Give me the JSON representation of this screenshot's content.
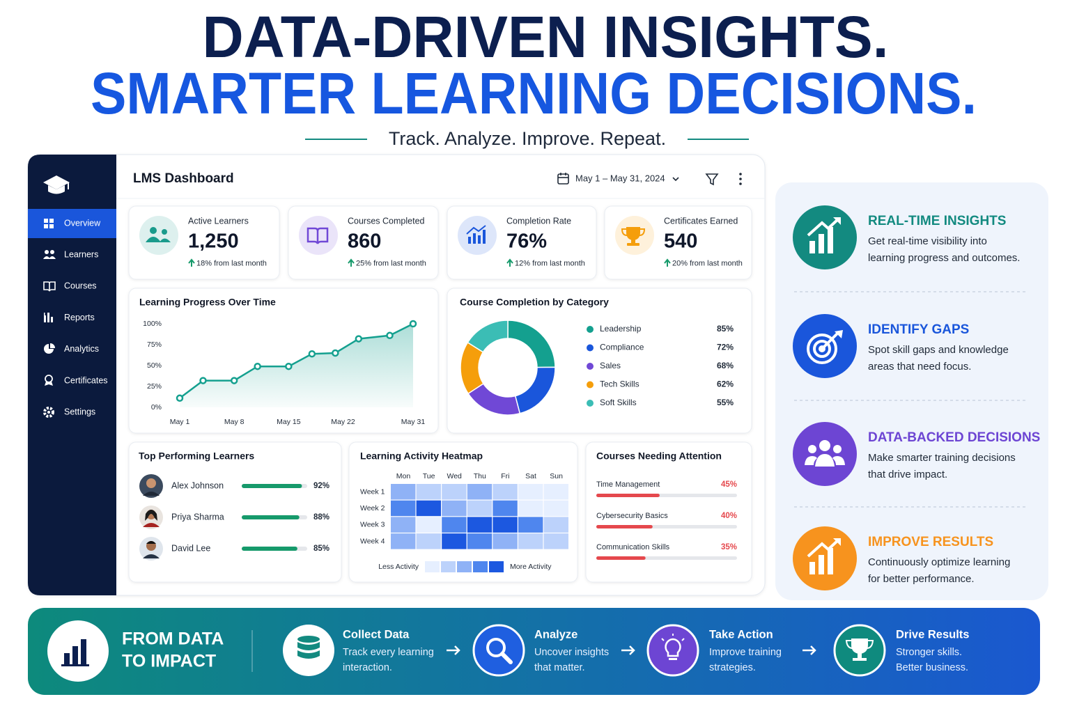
{
  "header": {
    "title_line1": "DATA-DRIVEN INSIGHTS.",
    "title_line2": "SMARTER LEARNING DECISIONS.",
    "tagline": "Track. Analyze. Improve. Repeat."
  },
  "sidebar": {
    "items": [
      "Overview",
      "Learners",
      "Courses",
      "Reports",
      "Analytics",
      "Certificates",
      "Settings"
    ],
    "active": 0
  },
  "dashboard": {
    "title": "LMS Dashboard",
    "date_range": "May 1 – May 31, 2024",
    "kpis": [
      {
        "label": "Active Learners",
        "value": "1,250",
        "change": "18% from last month",
        "color": "#1a9b8c"
      },
      {
        "label": "Courses Completed",
        "value": "860",
        "change": "25% from last month",
        "color": "#7048d6"
      },
      {
        "label": "Completion Rate",
        "value": "76%",
        "change": "12% from last month",
        "color": "#1a56db"
      },
      {
        "label": "Certificates Earned",
        "value": "540",
        "change": "20% from last month",
        "color": "#f59e0b"
      }
    ],
    "progress_chart": {
      "type": "line",
      "title": "Learning Progress Over Time",
      "x": [
        1,
        4,
        8,
        11,
        15,
        18,
        21,
        24,
        28,
        31
      ],
      "values": [
        11,
        32,
        32,
        49,
        49,
        64,
        65,
        82,
        86,
        100
      ],
      "xlim": [
        1,
        31
      ],
      "xticks": [
        {
          "value": 1,
          "label": "May 1"
        },
        {
          "value": 8,
          "label": "May 8"
        },
        {
          "value": 15,
          "label": "May 15"
        },
        {
          "value": 22,
          "label": "May 22"
        },
        {
          "value": 31,
          "label": "May 31"
        }
      ],
      "ylim": [
        0,
        100
      ],
      "yticks": [
        {
          "value": 0,
          "label": "0%"
        },
        {
          "value": 25,
          "label": "25%"
        },
        {
          "value": 50,
          "label": "50%"
        },
        {
          "value": 75,
          "label": "75%"
        },
        {
          "value": 100,
          "label": "100%"
        }
      ],
      "color": "#14a08f",
      "grid": false
    },
    "category_chart": {
      "type": "donut",
      "title": "Course Completion by Category",
      "categories": [
        "Leadership",
        "Compliance",
        "Sales",
        "Tech Skills",
        "Soft Skills"
      ],
      "values": [
        85,
        72,
        68,
        62,
        55
      ],
      "value_labels": [
        "85%",
        "72%",
        "68%",
        "62%",
        "55%"
      ],
      "colors": [
        "#14a08f",
        "#1a56db",
        "#7048d6",
        "#f59e0b",
        "#3bbdb5"
      ]
    },
    "top_learners": {
      "title": "Top Performing Learners",
      "names": [
        "Alex Johnson",
        "Priya Sharma",
        "David Lee"
      ],
      "values": [
        92,
        88,
        85
      ],
      "value_labels": [
        "92%",
        "88%",
        "85%"
      ],
      "color": "#169a6b"
    },
    "heatmap": {
      "title": "Learning Activity Heatmap",
      "columns": [
        "Mon",
        "Tue",
        "Wed",
        "Thu",
        "Fri",
        "Sat",
        "Sun"
      ],
      "rows": [
        "Week 1",
        "Week 2",
        "Week 3",
        "Week 4"
      ],
      "values": [
        [
          3,
          2,
          2,
          3,
          2,
          1,
          1
        ],
        [
          4,
          5,
          3,
          2,
          4,
          1,
          1
        ],
        [
          3,
          1,
          4,
          5,
          5,
          4,
          2
        ],
        [
          3,
          2,
          5,
          4,
          3,
          2,
          2
        ]
      ],
      "colors": [
        "#e6efff",
        "#bcd2fb",
        "#8fb2f6",
        "#4f86ee",
        "#1c58e0"
      ],
      "legend_low": "Less Activity",
      "legend_high": "More Activity"
    },
    "attention": {
      "title": "Courses Needing Attention",
      "names": [
        "Time Management",
        "Cybersecurity Basics",
        "Communication Skills"
      ],
      "values": [
        45,
        40,
        35
      ],
      "value_labels": [
        "45%",
        "40%",
        "35%"
      ],
      "color": "#e5484d"
    }
  },
  "features": [
    {
      "title": "REAL-TIME INSIGHTS",
      "lines": [
        "Get real-time visibility into",
        "learning progress and outcomes."
      ],
      "color": "#138a80"
    },
    {
      "title": "IDENTIFY GAPS",
      "lines": [
        "Spot skill gaps and knowledge",
        "areas that need focus."
      ],
      "color": "#1a56db"
    },
    {
      "title": "DATA-BACKED DECISIONS",
      "lines": [
        "Make smarter training decisions",
        "that drive impact."
      ],
      "color": "#6d45d3"
    },
    {
      "title": "IMPROVE RESULTS",
      "lines": [
        "Continuously optimize learning",
        "for better performance."
      ],
      "color": "#f7931e"
    }
  ],
  "impact": {
    "title_lines": [
      "FROM DATA",
      "TO IMPACT"
    ],
    "steps": [
      {
        "title": "Collect Data",
        "lines": [
          "Track every learning",
          "interaction."
        ]
      },
      {
        "title": "Analyze",
        "lines": [
          "Uncover insights",
          "that matter."
        ]
      },
      {
        "title": "Take Action",
        "lines": [
          "Improve training",
          "strategies."
        ]
      },
      {
        "title": "Drive Results",
        "lines": [
          "Stronger skills.",
          "Better business."
        ]
      }
    ]
  }
}
